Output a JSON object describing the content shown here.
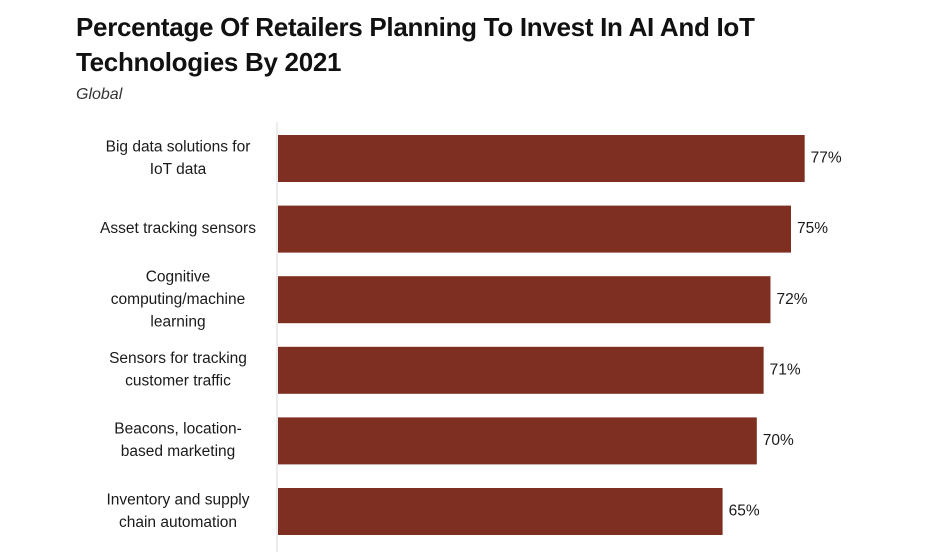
{
  "chart_data": {
    "type": "bar",
    "orientation": "horizontal",
    "title": "Percentage Of Retailers Planning To Invest In AI And IoT Technologies By 2021",
    "subtitle": "Global",
    "categories": [
      "Big data solutions for IoT data",
      "Asset tracking sensors",
      "Cognitive computing/machine learning",
      "Sensors for tracking customer traffic",
      "Beacons, location-based marketing",
      "Inventory and supply chain automation"
    ],
    "category_lines": [
      [
        "Big data solutions for",
        "IoT data"
      ],
      [
        "Asset tracking sensors"
      ],
      [
        "Cognitive",
        "computing/machine",
        "learning"
      ],
      [
        "Sensors for tracking",
        "customer traffic"
      ],
      [
        "Beacons, location-",
        "based marketing"
      ],
      [
        "Inventory and supply",
        "chain automation"
      ]
    ],
    "values": [
      77,
      75,
      72,
      71,
      70,
      65
    ],
    "value_labels": [
      "77%",
      "75%",
      "72%",
      "71%",
      "70%",
      "65%"
    ],
    "bar_color": "#7f2f22",
    "grid": false,
    "legend": "none"
  }
}
